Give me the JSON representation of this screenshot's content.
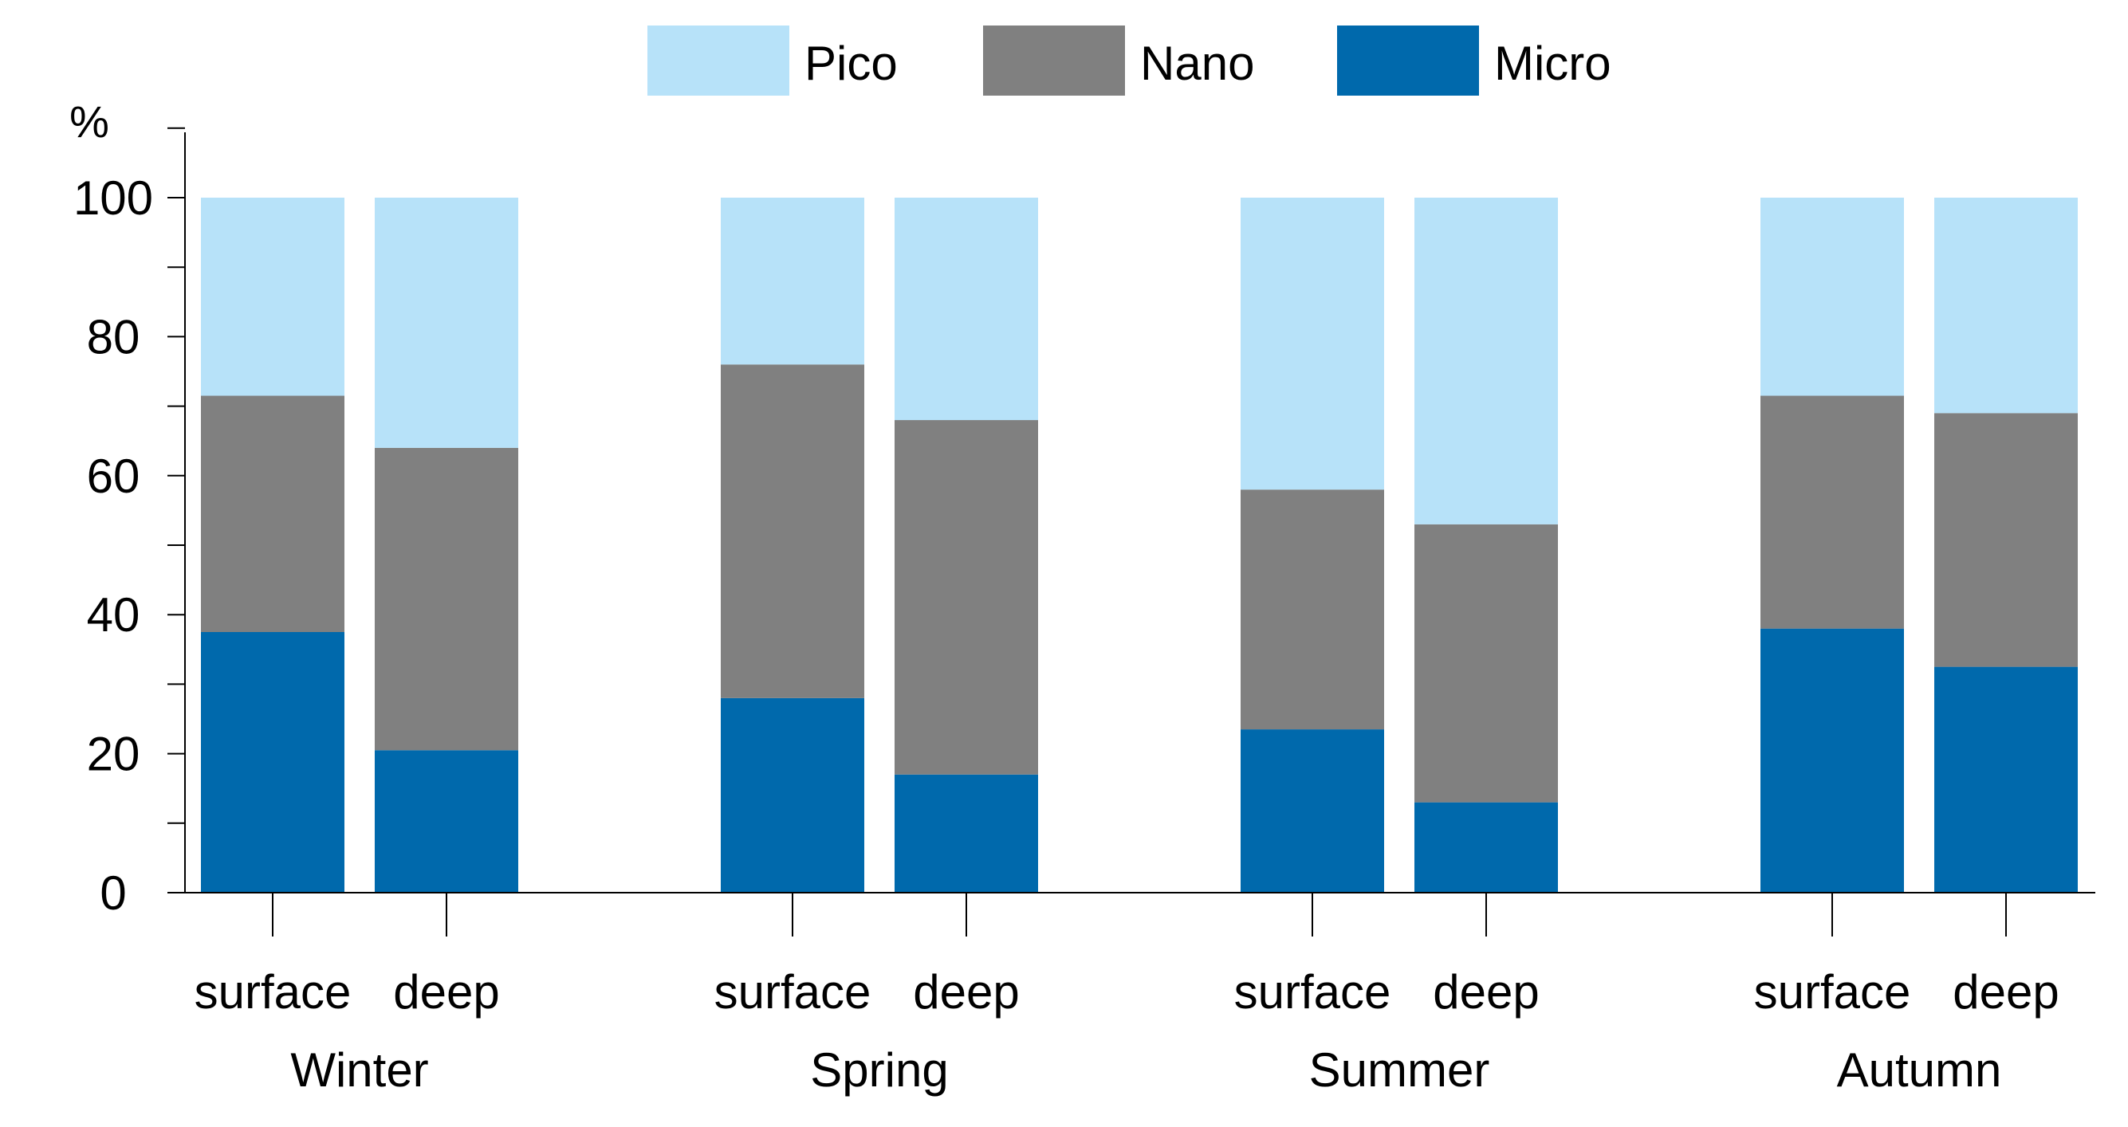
{
  "chart_data": {
    "type": "bar",
    "stacked": true,
    "ylabel": "%",
    "ylim": [
      0,
      110
    ],
    "yticks": [
      0,
      20,
      40,
      60,
      80,
      100
    ],
    "groups": [
      {
        "label": "Winter",
        "bars": [
          {
            "label": "surface",
            "values": {
              "Micro": 37.5,
              "Nano": 34,
              "Pico": 28.5
            }
          },
          {
            "label": "deep",
            "values": {
              "Micro": 20.5,
              "Nano": 43.5,
              "Pico": 36
            }
          }
        ]
      },
      {
        "label": "Spring",
        "bars": [
          {
            "label": "surface",
            "values": {
              "Micro": 28,
              "Nano": 48,
              "Pico": 24
            }
          },
          {
            "label": "deep",
            "values": {
              "Micro": 17,
              "Nano": 51,
              "Pico": 32
            }
          }
        ]
      },
      {
        "label": "Summer",
        "bars": [
          {
            "label": "surface",
            "values": {
              "Micro": 23.5,
              "Nano": 34.5,
              "Pico": 42
            }
          },
          {
            "label": "deep",
            "values": {
              "Micro": 13,
              "Nano": 40,
              "Pico": 47
            }
          }
        ]
      },
      {
        "label": "Autumn",
        "bars": [
          {
            "label": "surface",
            "values": {
              "Micro": 38,
              "Nano": 33.5,
              "Pico": 28.5
            }
          },
          {
            "label": "deep",
            "values": {
              "Micro": 32.5,
              "Nano": 36.5,
              "Pico": 31
            }
          }
        ]
      }
    ],
    "series": [
      {
        "name": "Micro",
        "color": "#0069ac"
      },
      {
        "name": "Nano",
        "color": "#808080"
      },
      {
        "name": "Pico",
        "color": "#b7e2f9"
      }
    ],
    "legend": {
      "order": [
        "Pico",
        "Nano",
        "Micro"
      ],
      "placement": "top-center"
    }
  }
}
